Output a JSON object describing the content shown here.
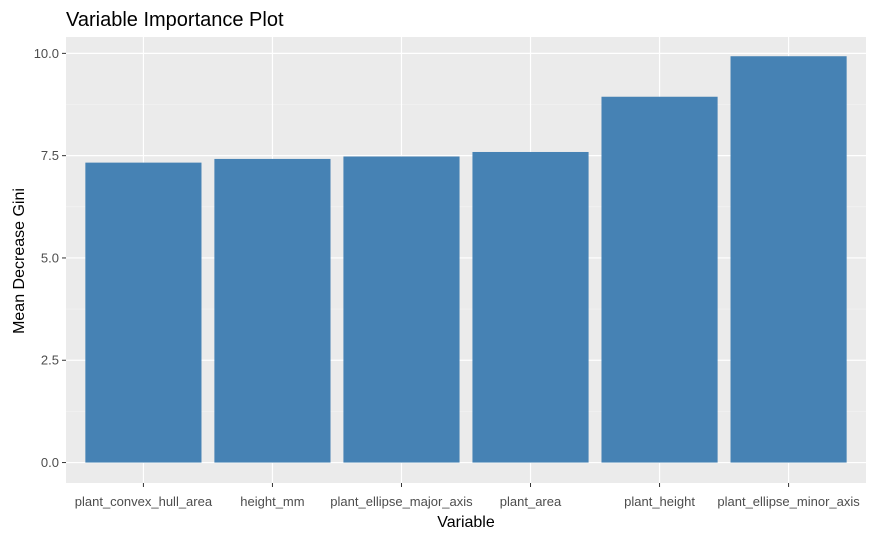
{
  "chart_data": {
    "type": "bar",
    "title": "Variable Importance Plot",
    "xlabel": "Variable",
    "ylabel": "Mean Decrease Gini",
    "categories": [
      "plant_convex_hull_area",
      "height_mm",
      "plant_ellipse_major_axis",
      "plant_area",
      "plant_height",
      "plant_ellipse_minor_axis"
    ],
    "values": [
      7.33,
      7.42,
      7.48,
      7.59,
      8.94,
      9.93
    ],
    "ylim": [
      -0.5,
      10.4
    ],
    "yticks": [
      0,
      2.5,
      5,
      7.5,
      10
    ],
    "ytick_labels": [
      "0.0",
      "2.5",
      "5.0",
      "7.5",
      "10.0"
    ],
    "grid": true,
    "legend": "none",
    "colors": {
      "bar": "#4682B4",
      "panel_background": "#EBEBEB",
      "grid_major": "#FFFFFF",
      "grid_minor": "#F4F4F4",
      "tick_text": "#4D4D4D",
      "tick_mark": "#333333",
      "title_text": "#000000"
    }
  }
}
